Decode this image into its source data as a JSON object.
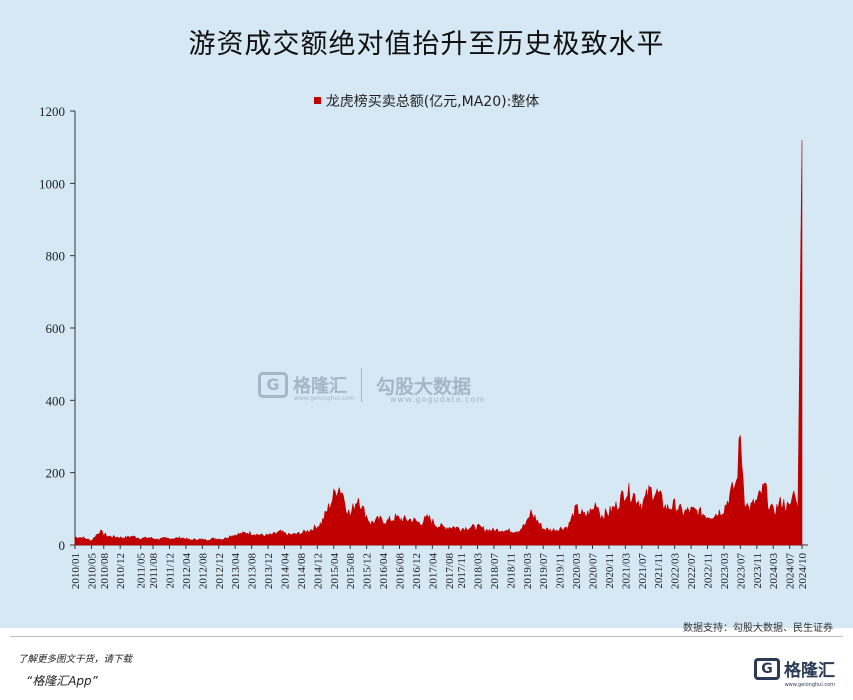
{
  "title": "游资成交额绝对值抬升至历史极致水平",
  "legend_label": "龙虎榜买卖总额(亿元,MA20):整体",
  "source": "数据支持：勾股大数据、民生证券",
  "watermark": {
    "brand": "格隆汇",
    "brand_url": "www.gelonghui.com",
    "partner": "勾股大数据",
    "partner_url": "www.gogudata.com"
  },
  "footer": {
    "line1": "了解更多图文干货，请下载",
    "line2": "“格隆汇App”",
    "logo_text": "格隆汇",
    "logo_url": "www.gelonghui.com"
  },
  "colors": {
    "series": "#c00000",
    "background": "#d6e8f4"
  },
  "chart_data": {
    "type": "area",
    "title": "游资成交额绝对值抬升至历史极致水平",
    "xlabel": "",
    "ylabel": "",
    "ylim": [
      0,
      1200
    ],
    "yticks": [
      0,
      200,
      400,
      600,
      800,
      1000,
      1200
    ],
    "xticks": [
      "2010/01",
      "2010/05",
      "2010/08",
      "2010/12",
      "2011/05",
      "2011/08",
      "2011/12",
      "2012/04",
      "2012/08",
      "2012/12",
      "2013/04",
      "2013/08",
      "2013/12",
      "2014/04",
      "2014/08",
      "2014/12",
      "2015/04",
      "2015/08",
      "2015/12",
      "2016/04",
      "2016/08",
      "2016/12",
      "2017/04",
      "2017/08",
      "2017/11",
      "2018/03",
      "2018/07",
      "2018/11",
      "2019/03",
      "2019/07",
      "2019/11",
      "2020/03",
      "2020/07",
      "2020/11",
      "2021/03",
      "2021/07",
      "2021/11",
      "2022/03",
      "2022/07",
      "2022/11",
      "2023/03",
      "2023/07",
      "2023/11",
      "2024/03",
      "2024/07",
      "2024/10"
    ],
    "series": [
      {
        "name": "龙虎榜买卖总额(亿元,MA20):整体",
        "x": [
          "2010/01",
          "2010/03",
          "2010/05",
          "2010/07",
          "2010/09",
          "2010/11",
          "2011/01",
          "2011/03",
          "2011/05",
          "2011/07",
          "2011/09",
          "2011/11",
          "2012/01",
          "2012/03",
          "2012/05",
          "2012/07",
          "2012/09",
          "2012/11",
          "2013/01",
          "2013/03",
          "2013/05",
          "2013/07",
          "2013/09",
          "2013/11",
          "2014/01",
          "2014/03",
          "2014/05",
          "2014/07",
          "2014/09",
          "2014/11",
          "2015/01",
          "2015/03",
          "2015/04",
          "2015/05",
          "2015/06",
          "2015/07",
          "2015/08",
          "2015/09",
          "2015/10",
          "2015/11",
          "2015/12",
          "2016/01",
          "2016/03",
          "2016/05",
          "2016/07",
          "2016/09",
          "2016/11",
          "2017/01",
          "2017/03",
          "2017/05",
          "2017/07",
          "2017/09",
          "2017/11",
          "2018/01",
          "2018/03",
          "2018/05",
          "2018/07",
          "2018/09",
          "2018/11",
          "2019/01",
          "2019/03",
          "2019/04",
          "2019/05",
          "2019/07",
          "2019/09",
          "2019/11",
          "2020/01",
          "2020/03",
          "2020/05",
          "2020/07",
          "2020/08",
          "2020/09",
          "2020/11",
          "2021/01",
          "2021/03",
          "2021/05",
          "2021/07",
          "2021/09",
          "2021/11",
          "2022/01",
          "2022/03",
          "2022/05",
          "2022/07",
          "2022/09",
          "2022/11",
          "2023/01",
          "2023/03",
          "2023/05",
          "2023/06",
          "2023/07",
          "2023/08",
          "2023/09",
          "2023/11",
          "2024/01",
          "2024/02",
          "2024/03",
          "2024/05",
          "2024/07",
          "2024/08",
          "2024/09",
          "2024/10"
        ],
        "values": [
          22,
          20,
          12,
          38,
          24,
          22,
          20,
          24,
          18,
          20,
          16,
          18,
          18,
          20,
          14,
          16,
          14,
          18,
          16,
          26,
          30,
          34,
          30,
          26,
          28,
          36,
          28,
          30,
          36,
          45,
          60,
          110,
          135,
          165,
          150,
          110,
          80,
          110,
          135,
          100,
          80,
          60,
          70,
          65,
          75,
          70,
          70,
          60,
          75,
          55,
          48,
          50,
          45,
          48,
          50,
          42,
          40,
          42,
          38,
          40,
          60,
          90,
          75,
          45,
          40,
          45,
          50,
          100,
          80,
          95,
          120,
          80,
          90,
          110,
          150,
          140,
          110,
          150,
          140,
          100,
          110,
          90,
          95,
          90,
          80,
          85,
          100,
          150,
          170,
          300,
          130,
          100,
          120,
          160,
          110,
          90,
          120,
          100,
          150,
          100,
          1120
        ]
      }
    ]
  }
}
